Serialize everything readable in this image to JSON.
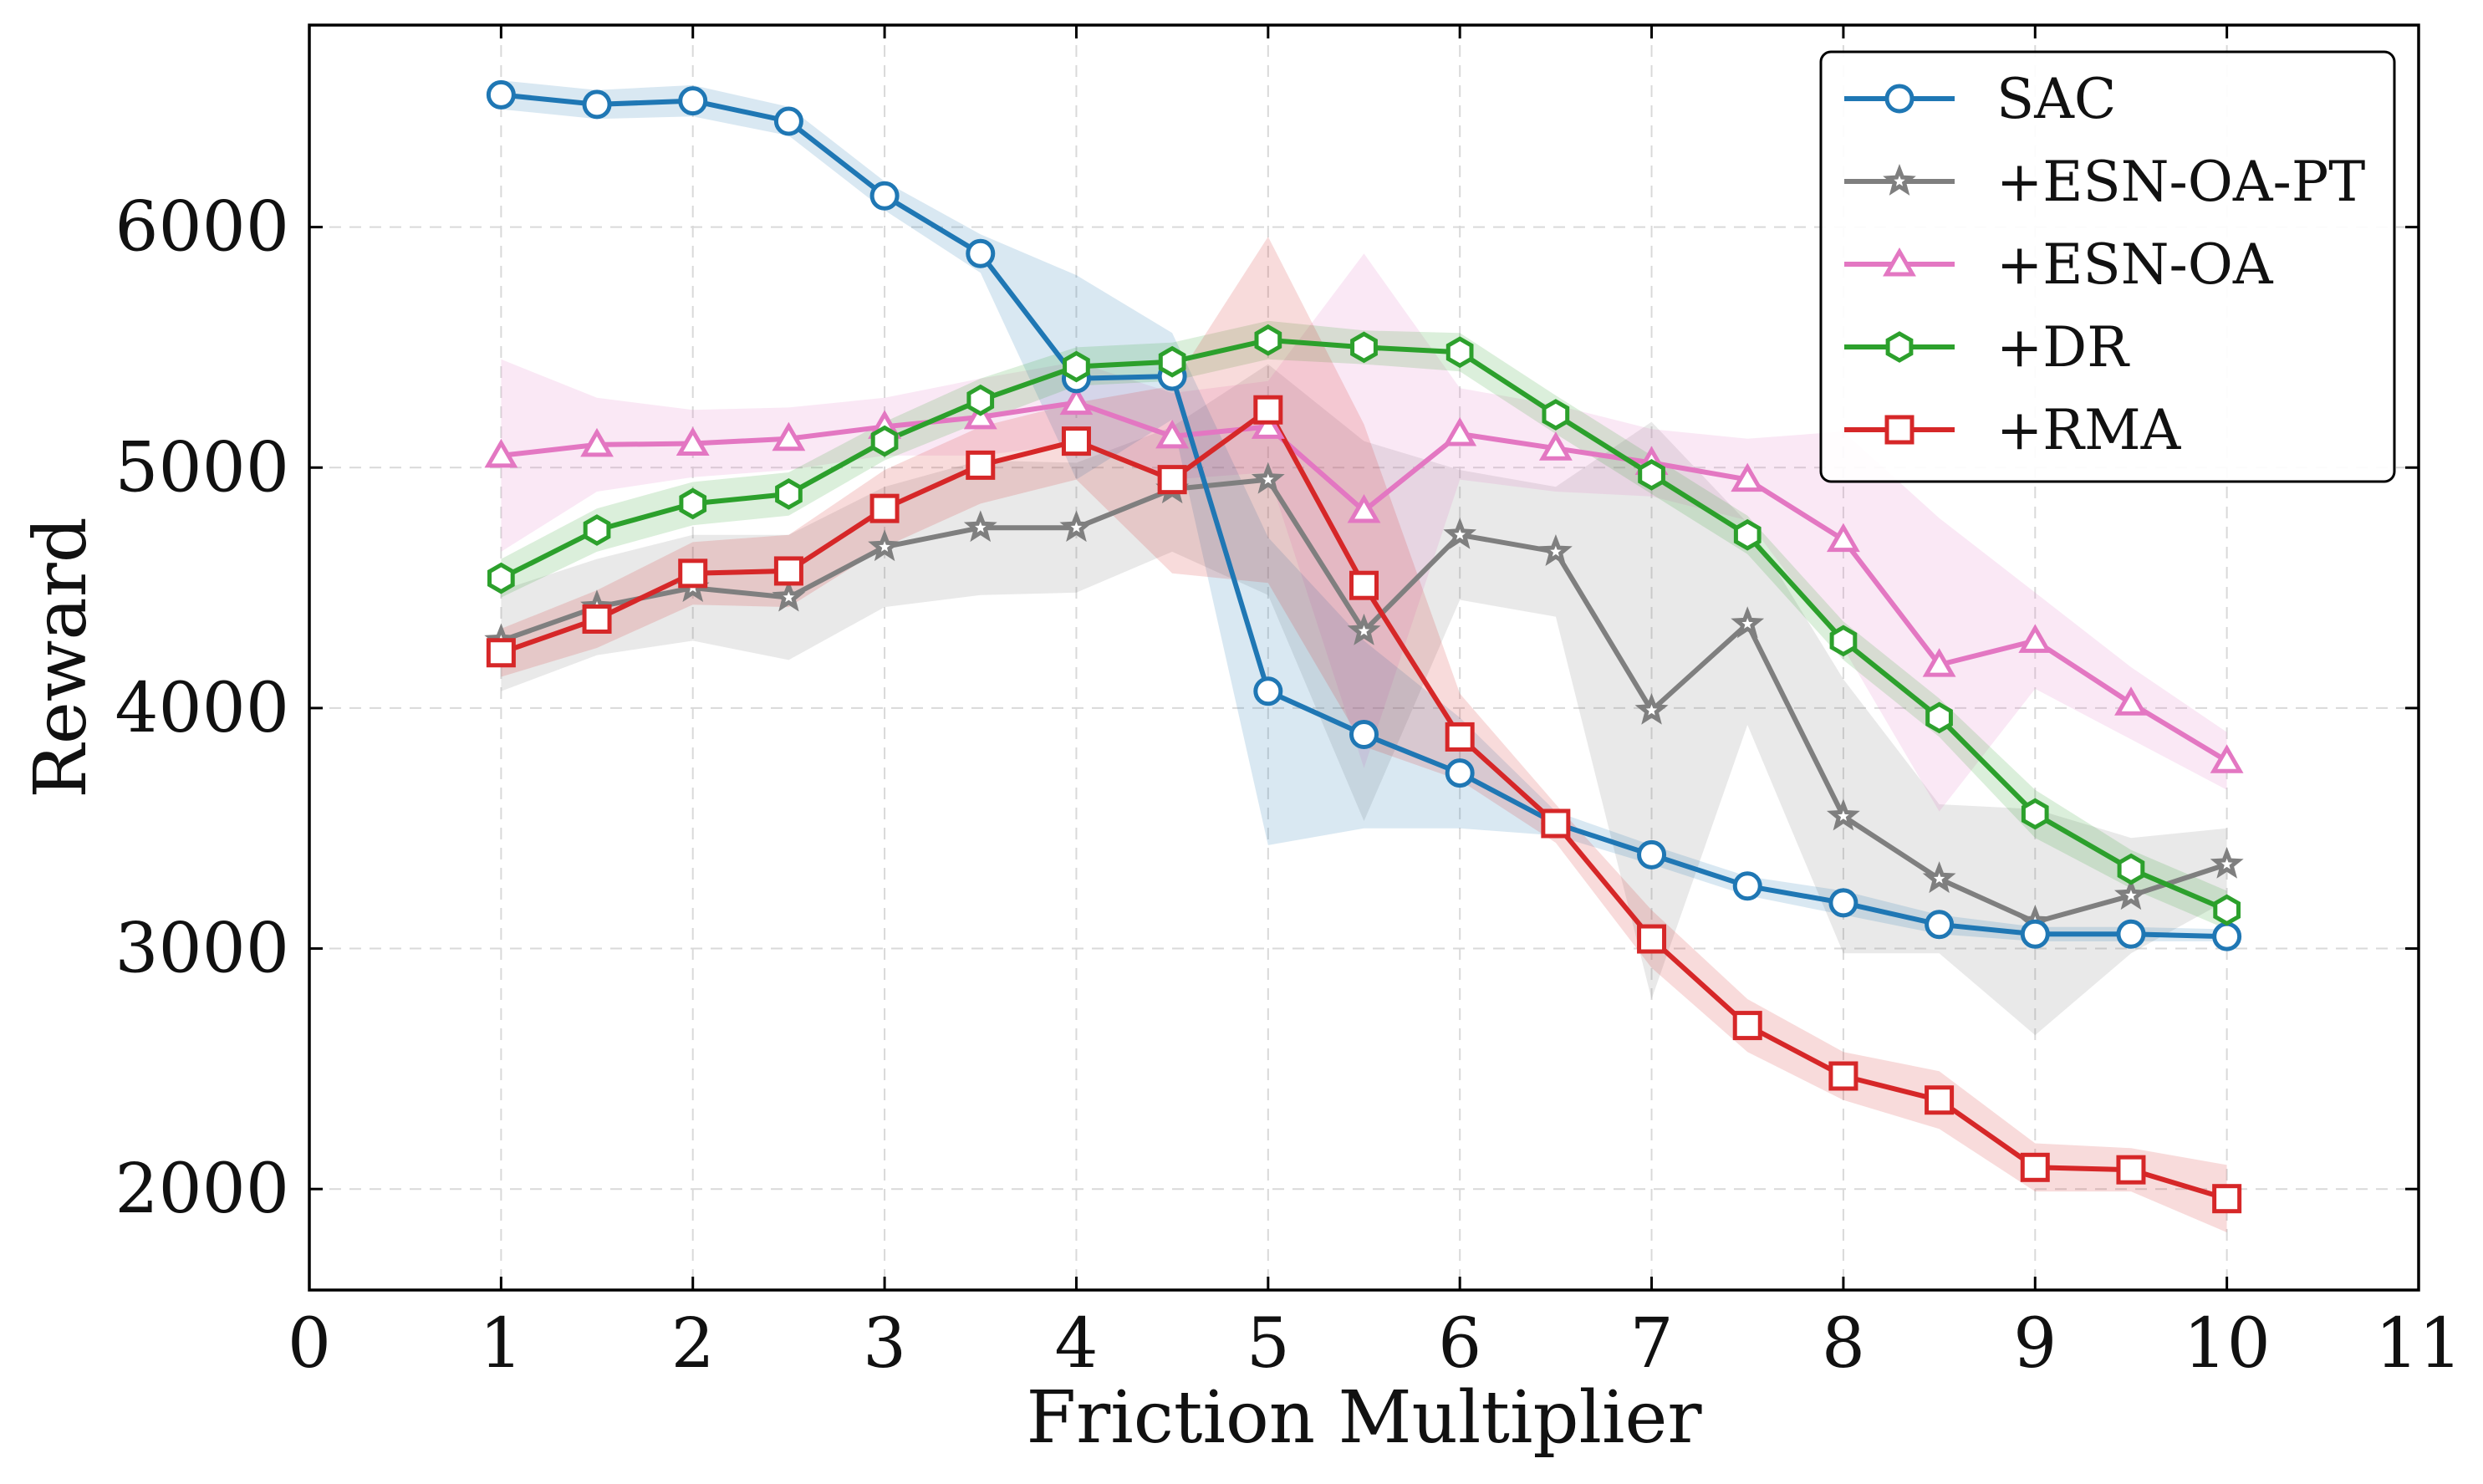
{
  "chart_data": {
    "type": "line",
    "title": "",
    "xlabel": "Friction Multiplier",
    "ylabel": "Reward",
    "xlim": [
      0,
      11
    ],
    "ylim": [
      1580,
      6840
    ],
    "xticks": [
      0,
      1,
      2,
      3,
      4,
      5,
      6,
      7,
      8,
      9,
      10,
      11
    ],
    "yticks": [
      2000,
      3000,
      4000,
      5000,
      6000
    ],
    "grid": true,
    "legend_position": "top-right",
    "x": [
      1,
      1.5,
      2,
      2.5,
      3,
      3.5,
      4,
      4.5,
      5,
      5.5,
      6,
      6.5,
      7,
      7.5,
      8,
      8.5,
      9,
      9.5,
      10
    ],
    "series": [
      {
        "name": "SAC",
        "color": "#1f77b4",
        "marker": "circle",
        "values": [
          6550,
          6510,
          6525,
          6440,
          6130,
          5890,
          5370,
          5380,
          4070,
          3890,
          3730,
          3520,
          3390,
          3260,
          3190,
          3100,
          3060,
          3060,
          3050
        ],
        "lower": [
          6490,
          6450,
          6460,
          6380,
          6070,
          5810,
          4950,
          5200,
          3430,
          3500,
          3500,
          3470,
          3350,
          3220,
          3140,
          3060,
          3030,
          3030,
          3030
        ],
        "upper": [
          6610,
          6570,
          6590,
          6500,
          6190,
          5970,
          5800,
          5560,
          4710,
          4280,
          3960,
          3570,
          3430,
          3300,
          3240,
          3140,
          3090,
          3090,
          3080
        ]
      },
      {
        "name": "+ESN-OA-PT",
        "color": "#7f7f7f",
        "marker": "star",
        "values": [
          4280,
          4420,
          4500,
          4460,
          4670,
          4750,
          4750,
          4910,
          4950,
          4320,
          4720,
          4650,
          3990,
          4350,
          3550,
          3290,
          3110,
          3220,
          3350
        ],
        "lower": [
          4070,
          4220,
          4280,
          4200,
          4420,
          4470,
          4480,
          4650,
          4470,
          3530,
          4450,
          4380,
          2790,
          3930,
          2980,
          2980,
          2640,
          2980,
          3200
        ],
        "upper": [
          4490,
          4620,
          4720,
          4720,
          4920,
          5030,
          5020,
          5170,
          5430,
          5110,
          4990,
          4920,
          5190,
          4770,
          4120,
          3600,
          3580,
          3460,
          3500
        ]
      },
      {
        "name": "+ESN-OA",
        "color": "#e377c2",
        "marker": "triangle",
        "values": [
          5050,
          5095,
          5100,
          5120,
          5170,
          5210,
          5270,
          5130,
          5170,
          4820,
          5140,
          5080,
          5020,
          4950,
          4700,
          4180,
          4280,
          4020,
          3780
        ],
        "lower": [
          4650,
          4900,
          4960,
          4990,
          5050,
          5050,
          5100,
          4950,
          4980,
          3750,
          4950,
          4900,
          4880,
          4780,
          4250,
          3570,
          4080,
          3870,
          3660
        ],
        "upper": [
          5450,
          5290,
          5240,
          5250,
          5290,
          5370,
          5440,
          5310,
          5360,
          5890,
          5330,
          5260,
          5160,
          5120,
          5150,
          4790,
          4480,
          4170,
          3900
        ]
      },
      {
        "name": "+DR",
        "color": "#2ca02c",
        "marker": "hexagon",
        "values": [
          4540,
          4740,
          4850,
          4890,
          5110,
          5280,
          5420,
          5440,
          5530,
          5500,
          5480,
          5220,
          4970,
          4720,
          4280,
          3960,
          3560,
          3330,
          3160
        ],
        "lower": [
          4460,
          4650,
          4760,
          4800,
          5030,
          5190,
          5340,
          5360,
          5450,
          5430,
          5400,
          5140,
          4890,
          4640,
          4200,
          3880,
          3460,
          3250,
          3080
        ],
        "upper": [
          4620,
          4830,
          4940,
          4980,
          5190,
          5370,
          5500,
          5520,
          5610,
          5570,
          5560,
          5300,
          5050,
          4800,
          4360,
          4040,
          3660,
          3410,
          3240
        ]
      },
      {
        "name": "+RMA",
        "color": "#d62728",
        "marker": "square",
        "values": [
          4230,
          4370,
          4560,
          4570,
          4830,
          5010,
          5110,
          4950,
          5240,
          4510,
          3880,
          3520,
          3040,
          2680,
          2470,
          2370,
          2090,
          2080,
          1960
        ],
        "lower": [
          4130,
          4250,
          4430,
          4420,
          4670,
          4850,
          4950,
          4560,
          4520,
          3840,
          3700,
          3440,
          2920,
          2570,
          2370,
          2250,
          1990,
          1990,
          1820
        ],
        "upper": [
          4330,
          4490,
          4690,
          4720,
          4990,
          5170,
          5270,
          5340,
          5960,
          5180,
          4060,
          3600,
          3160,
          2790,
          2570,
          2490,
          2190,
          2170,
          2100
        ]
      }
    ]
  }
}
